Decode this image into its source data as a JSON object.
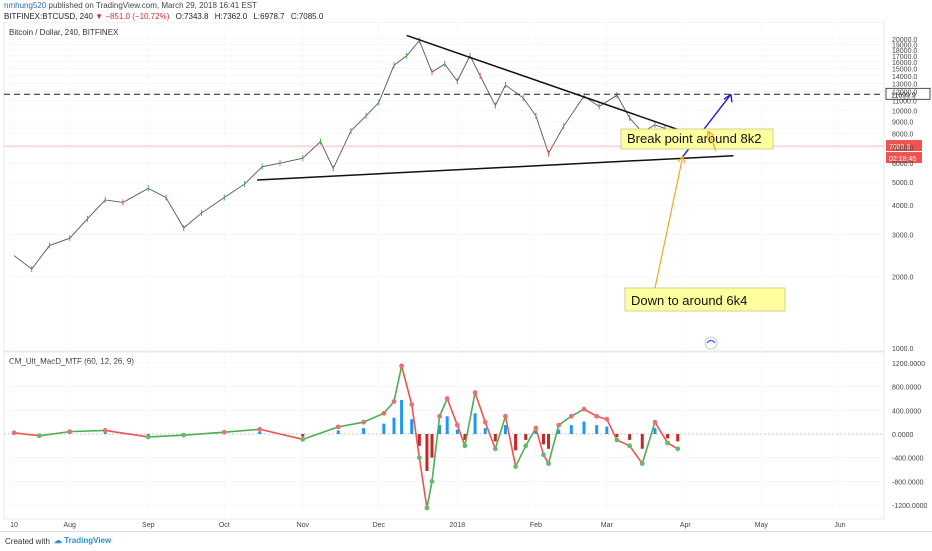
{
  "header": {
    "user": "nmhung520",
    "published": "published on TradingView.com, March 29, 2018 16:41 EST",
    "symbol": "BITFINEX:BTCUSD, 240",
    "arrow": "▼",
    "change": "−851.0 (−10.72%)",
    "last": "7085.0",
    "o": "O:7343.8",
    "h": "H:7362.0",
    "l": "L:6978.7",
    "c": "C:7085.0"
  },
  "footer": {
    "created_with": "Created with",
    "brand": "TradingView"
  },
  "colors": {
    "up": "#4caf50",
    "down": "#ef5350",
    "accent": "#2962ff",
    "annotation_fill": "#ffffa0",
    "annotation_arrow": "#f5a623",
    "macd_pos": "#2196f3",
    "macd_neg": "#c62828"
  },
  "chart_data": [
    {
      "type": "line",
      "title": "Bitcoin / Dollar, 240, BITFINEX",
      "price_axis_ticks": [
        "20000.0",
        "19000.0",
        "18000.0",
        "17000.0",
        "16000.0",
        "15000.0",
        "14000.0",
        "13000.0",
        "12000.0",
        "11000.0",
        "10000.0",
        "9000.0",
        "8000.0",
        "7000.0",
        "6000.0",
        "5000.0",
        "4000.0",
        "3000.0",
        "2000.0",
        "1000.0"
      ],
      "price_axis_values": [
        20000,
        19000,
        18000,
        17000,
        16000,
        15000,
        14000,
        13000,
        12000,
        11000,
        10000,
        9000,
        8000,
        7000,
        6000,
        5000,
        4000,
        3000,
        2000,
        1000
      ],
      "ylim": [
        800,
        20800
      ],
      "time_axis_labels": [
        "10",
        "Aug",
        "Sep",
        "Oct",
        "Nov",
        "Dec",
        "2018",
        "Feb",
        "Mar",
        "Apr",
        "May",
        "Jun"
      ],
      "series": [
        {
          "name": "",
          "x": [
            "2017-07-10",
            "2017-07-17",
            "2017-07-24",
            "2017-08-01",
            "2017-08-08",
            "2017-08-15",
            "2017-08-22",
            "2017-09-01",
            "2017-09-08",
            "2017-09-15",
            "2017-09-22",
            "2017-10-01",
            "2017-10-09",
            "2017-10-16",
            "2017-10-23",
            "2017-11-01",
            "2017-11-08",
            "2017-11-13",
            "2017-11-20",
            "2017-11-26",
            "2017-12-01",
            "2017-12-07",
            "2017-12-12",
            "2017-12-17",
            "2017-12-22",
            "2017-12-27",
            "2018-01-01",
            "2018-01-06",
            "2018-01-10",
            "2018-01-16",
            "2018-01-20",
            "2018-01-27",
            "2018-02-01",
            "2018-02-06",
            "2018-02-12",
            "2018-02-20",
            "2018-02-26",
            "2018-03-05",
            "2018-03-10",
            "2018-03-15",
            "2018-03-20",
            "2018-03-24",
            "2018-03-29"
          ],
          "values": [
            2450,
            2150,
            2700,
            2900,
            3500,
            4200,
            4100,
            4700,
            4300,
            3200,
            3700,
            4300,
            4900,
            5800,
            6000,
            6300,
            7400,
            5700,
            8200,
            9500,
            10800,
            15500,
            17000,
            19700,
            14500,
            15700,
            13300,
            17000,
            14000,
            10500,
            12800,
            11300,
            9500,
            6600,
            8600,
            11500,
            10400,
            11600,
            9300,
            8100,
            8700,
            8400,
            7085
          ]
        }
      ],
      "reference_lines": [
        {
          "value": 11699.9,
          "label": "11699.9",
          "style": "dashed"
        }
      ],
      "current_price": {
        "value": 7085.0,
        "label": "7085.0",
        "timer": "02:18:45"
      },
      "trendlines": [
        {
          "from": [
            "2017-10-14",
            5100
          ],
          "to": [
            "2018-04-20",
            6450
          ],
          "label": ""
        },
        {
          "from": [
            "2017-12-12",
            20700
          ],
          "to": [
            "2018-04-20",
            6900
          ],
          "label": ""
        }
      ],
      "projection_arrow": {
        "from": [
          "2018-03-31",
          6400
        ],
        "to": [
          "2018-04-19",
          11700
        ]
      },
      "annotations": [
        {
          "text": "Break point around 8k2",
          "points_to": [
            "2018-04-10",
            8200
          ]
        },
        {
          "text": "Down to around 6k4",
          "points_to": [
            "2018-03-31",
            6400
          ]
        }
      ],
      "indicator": {
        "title": "CM_Ult_MacD_MTF (60, 12, 26, 9)",
        "axis_ticks": [
          "1200.0000",
          "800.0000",
          "400.0000",
          "0.0000",
          "-400.0000",
          "-800.0000",
          "-1200.0000"
        ],
        "axis_values": [
          1200,
          800,
          400,
          0,
          -400,
          -800,
          -1200
        ],
        "ylim": [
          -1420,
          1420
        ],
        "macd": {
          "x": [
            "2017-07-10",
            "2017-07-20",
            "2017-08-01",
            "2017-08-15",
            "2017-09-01",
            "2017-09-15",
            "2017-10-01",
            "2017-10-15",
            "2017-11-01",
            "2017-11-15",
            "2017-11-25",
            "2017-12-03",
            "2017-12-07",
            "2017-12-10",
            "2017-12-14",
            "2017-12-17",
            "2017-12-20",
            "2017-12-22",
            "2017-12-25",
            "2017-12-28",
            "2018-01-01",
            "2018-01-04",
            "2018-01-08",
            "2018-01-12",
            "2018-01-16",
            "2018-01-20",
            "2018-01-24",
            "2018-01-28",
            "2018-02-01",
            "2018-02-04",
            "2018-02-06",
            "2018-02-10",
            "2018-02-15",
            "2018-02-20",
            "2018-02-25",
            "2018-03-01",
            "2018-03-05",
            "2018-03-10",
            "2018-03-15",
            "2018-03-20",
            "2018-03-25",
            "2018-03-29"
          ],
          "values": [
            20,
            -30,
            40,
            60,
            -50,
            -20,
            30,
            80,
            -90,
            120,
            200,
            350,
            550,
            1150,
            500,
            -400,
            -1250,
            -800,
            300,
            600,
            150,
            -200,
            700,
            200,
            -250,
            300,
            -550,
            -200,
            100,
            -350,
            -500,
            150,
            300,
            420,
            300,
            250,
            -100,
            -200,
            -500,
            200,
            -150,
            -250
          ]
        }
      }
    }
  ]
}
